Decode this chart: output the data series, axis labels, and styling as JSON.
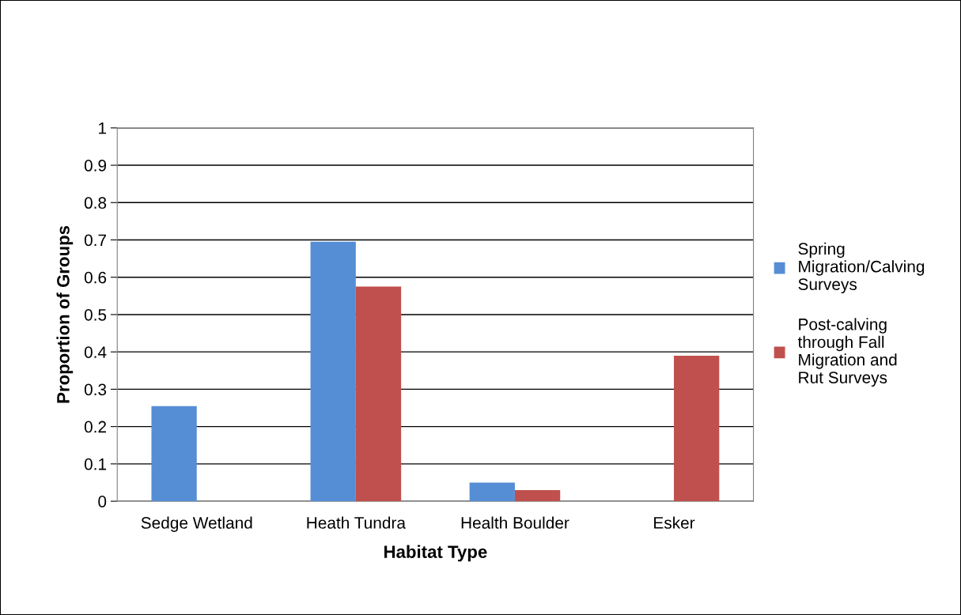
{
  "chart_data": {
    "type": "bar",
    "xlabel": "Habitat Type",
    "ylabel": "Proportion of Groups",
    "categories": [
      "Sedge Wetland",
      "Heath Tundra",
      "Health Boulder",
      "Esker"
    ],
    "series": [
      {
        "name": "Spring\nMigration/Calving\nSurveys",
        "color": "#558ed5",
        "values": [
          0.255,
          0.695,
          0.05,
          0
        ]
      },
      {
        "name": "Post-calving\nthrough Fall\nMigration and\nRut Surveys",
        "color": "#c0504d",
        "values": [
          0,
          0.575,
          0.03,
          0.39
        ]
      }
    ],
    "ylim": [
      0,
      1
    ],
    "yticks": [
      {
        "value": 0,
        "label": "0"
      },
      0.1,
      0.2,
      0.3,
      0.4,
      0.5,
      0.6,
      0.7,
      0.8,
      0.9,
      {
        "value": 1,
        "label": "1"
      }
    ],
    "grid": "y",
    "legend": "right"
  }
}
